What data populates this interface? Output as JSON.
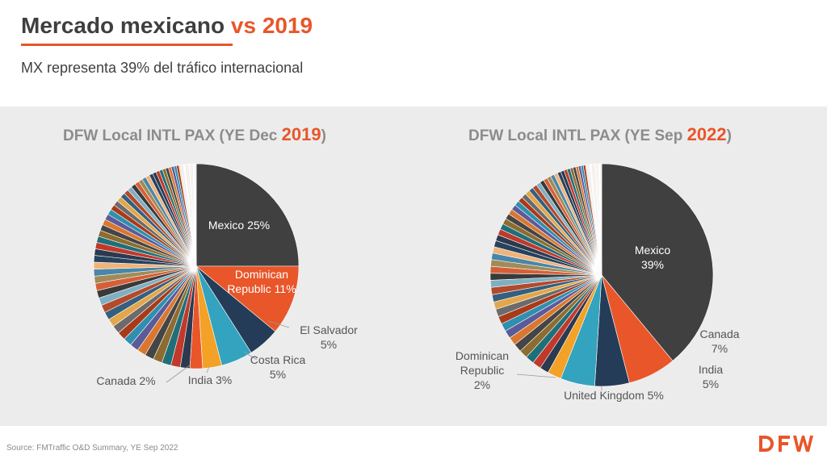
{
  "header": {
    "title_main": "Mercado mexicano",
    "title_accent": "vs 2019",
    "subtitle": "MX representa 39% del tráfico internacional"
  },
  "source": "Source: FMTraffic O&D Summary, YE Sep 2022",
  "colors": {
    "accent": "#e8562a",
    "mexico": "#404040",
    "dominican": "#e8562a",
    "panel": "#ececec"
  },
  "logo": {
    "name": "dfw-logo",
    "text": "DFW"
  },
  "chart_data": [
    {
      "type": "pie",
      "title": {
        "bold": "DFW",
        "text": " Local INTL PAX (YE Dec ",
        "year": "2019",
        "close": ")"
      },
      "start": "12 o'clock, clockwise",
      "slices": [
        {
          "name": "Mexico",
          "value": 25,
          "label": "Mexico 25%",
          "color": "#404040"
        },
        {
          "name": "Dominican Republic",
          "value": 11,
          "label": "Dominican Republic 11%",
          "color": "#e8562a"
        },
        {
          "name": "El Salvador",
          "value": 5,
          "label": "El Salvador 5%",
          "color": "#243c57"
        },
        {
          "name": "Costa Rica",
          "value": 5,
          "label": "Costa Rica 5%",
          "color": "#33a3bf"
        },
        {
          "name": "India",
          "value": 3,
          "label": "India 3%",
          "color": "#f3a127"
        },
        {
          "name": "Canada",
          "value": 2,
          "label": "Canada 2%",
          "color": "#e8562a"
        }
      ],
      "other_share": 49
    },
    {
      "type": "pie",
      "title": {
        "bold": "DFW",
        "text": " Local INTL PAX (YE Sep ",
        "year": "2022",
        "close": ")"
      },
      "start": "12 o'clock, clockwise",
      "slices": [
        {
          "name": "Mexico",
          "value": 39,
          "label": "Mexico 39%",
          "color": "#404040"
        },
        {
          "name": "Canada",
          "value": 7,
          "label": "Canada 7%",
          "color": "#e8562a"
        },
        {
          "name": "India",
          "value": 5,
          "label": "India 5%",
          "color": "#243c57"
        },
        {
          "name": "United Kingdom",
          "value": 5,
          "label": "United Kingdom 5%",
          "color": "#33a3bf"
        },
        {
          "name": "Dominican Republic",
          "value": 2,
          "label": "Dominican Republic 2%",
          "color": "#f3a127"
        }
      ],
      "other_share": 42
    }
  ]
}
